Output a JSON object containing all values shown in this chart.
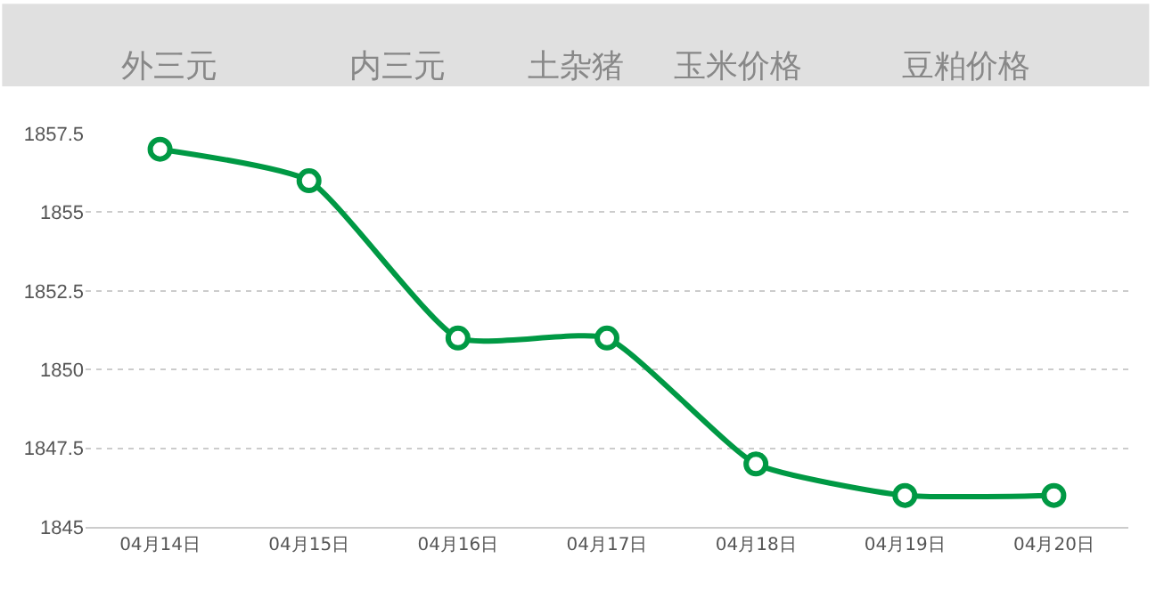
{
  "chart_data": {
    "type": "line",
    "categories": [
      "04月14日",
      "04月15日",
      "04月16日",
      "04月17日",
      "04月18日",
      "04月19日",
      "04月20日"
    ],
    "series": [
      {
        "color": "#009944",
        "values": [
          1857,
          1856,
          1851,
          1851,
          1847,
          1846,
          1846
        ]
      }
    ],
    "ylim": [
      1845,
      1857.5
    ],
    "yticks": [
      1845,
      1847.5,
      1850,
      1852.5,
      1855,
      1857.5
    ],
    "grid": "y",
    "marker": "circle",
    "line_style": "solid",
    "legend": false,
    "annotations": [
      "外三元",
      "内三元",
      "土杂猪",
      "玉米价格",
      "豆粕价格"
    ]
  }
}
